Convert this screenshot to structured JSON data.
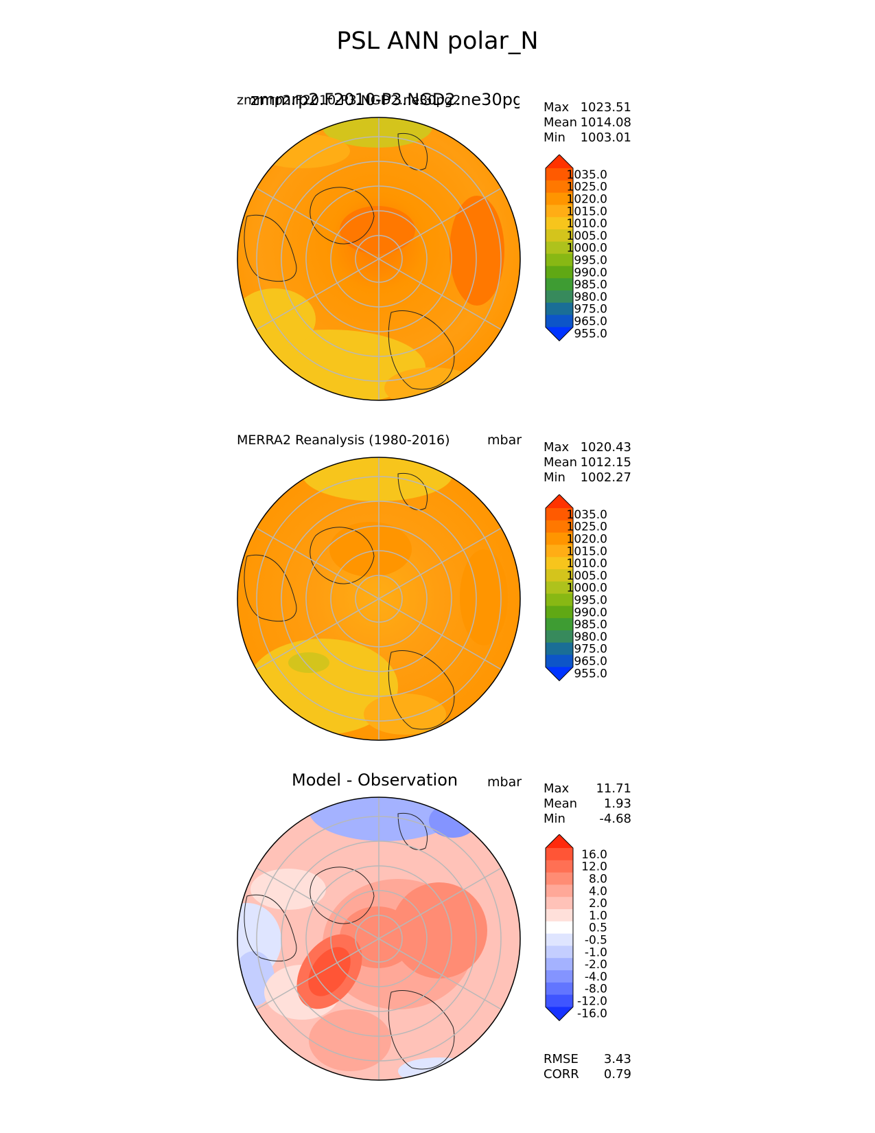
{
  "title": "PSL ANN polar_N",
  "panels": [
    {
      "left_title": "zmmrp2.F2010-P3.NGD2.ne30pg2",
      "left_title_overlap": "zmmrp2.F2010-P3.NGD2.ne30pg2",
      "units": "mbar",
      "stats": [
        {
          "label": "Max",
          "value": "1023.51"
        },
        {
          "label": "Mean",
          "value": "1014.08"
        },
        {
          "label": "Min",
          "value": "1003.01"
        }
      ],
      "colorbar": {
        "labels": [
          "1035.0",
          "1025.0",
          "1020.0",
          "1015.0",
          "1010.0",
          "1005.0",
          "1000.0",
          "995.0",
          "990.0",
          "985.0",
          "980.0",
          "975.0",
          "965.0",
          "955.0"
        ],
        "colors": [
          "#ff3300",
          "#ff5a00",
          "#ff7800",
          "#ff9500",
          "#ffad15",
          "#f7c51c",
          "#d4c41c",
          "#aec21c",
          "#88b814",
          "#60a814",
          "#3e9c33",
          "#378a5c",
          "#1a6e96",
          "#0d55c8",
          "#0034ff"
        ]
      }
    },
    {
      "left_title": "MERRA2 Reanalysis (1980-2016)",
      "units": "mbar",
      "stats": [
        {
          "label": "Max",
          "value": "1020.43"
        },
        {
          "label": "Mean",
          "value": "1012.15"
        },
        {
          "label": "Min",
          "value": "1002.27"
        }
      ],
      "colorbar": {
        "labels": [
          "1035.0",
          "1025.0",
          "1020.0",
          "1015.0",
          "1010.0",
          "1005.0",
          "1000.0",
          "995.0",
          "990.0",
          "985.0",
          "980.0",
          "975.0",
          "965.0",
          "955.0"
        ],
        "colors": [
          "#ff3300",
          "#ff5a00",
          "#ff7800",
          "#ff9500",
          "#ffad15",
          "#f7c51c",
          "#d4c41c",
          "#aec21c",
          "#88b814",
          "#60a814",
          "#3e9c33",
          "#378a5c",
          "#1a6e96",
          "#0d55c8",
          "#0034ff"
        ]
      }
    },
    {
      "center_title": "Model - Observation",
      "units": "mbar",
      "stats": [
        {
          "label": "Max",
          "value": "11.71"
        },
        {
          "label": "Mean",
          "value": "1.93"
        },
        {
          "label": "Min",
          "value": "-4.68"
        }
      ],
      "colorbar": {
        "labels": [
          "16.0",
          "12.0",
          "8.0",
          "4.0",
          "2.0",
          "1.0",
          "0.5",
          "-0.5",
          "-1.0",
          "-2.0",
          "-4.0",
          "-8.0",
          "-12.0",
          "-16.0"
        ],
        "colors": [
          "#ff2a0d",
          "#ff5536",
          "#ff7054",
          "#ff8c74",
          "#ffa898",
          "#ffc2b8",
          "#ffe0da",
          "#ffffff",
          "#dfe5ff",
          "#c4ceff",
          "#a4b2ff",
          "#8494ff",
          "#6275ff",
          "#3f55ff",
          "#1833ff"
        ]
      },
      "metrics": [
        {
          "label": "RMSE",
          "value": "3.43"
        },
        {
          "label": "CORR",
          "value": "0.79"
        }
      ]
    }
  ],
  "chart_data": [
    {
      "type": "heatmap",
      "projection": "north-polar-stereographic",
      "title": "zmmrp2.F2010-P3.NGD2.ne30pg2",
      "units": "mbar",
      "levels": [
        955,
        965,
        975,
        980,
        985,
        990,
        995,
        1000,
        1005,
        1010,
        1015,
        1020,
        1025,
        1035
      ],
      "max": 1023.51,
      "mean": 1014.08,
      "min": 1003.01
    },
    {
      "type": "heatmap",
      "projection": "north-polar-stereographic",
      "title": "MERRA2 Reanalysis (1980-2016)",
      "units": "mbar",
      "levels": [
        955,
        965,
        975,
        980,
        985,
        990,
        995,
        1000,
        1005,
        1010,
        1015,
        1020,
        1025,
        1035
      ],
      "max": 1020.43,
      "mean": 1012.15,
      "min": 1002.27
    },
    {
      "type": "heatmap",
      "projection": "north-polar-stereographic",
      "title": "Model - Observation",
      "units": "mbar",
      "levels": [
        -16,
        -12,
        -8,
        -4,
        -2,
        -1,
        -0.5,
        0.5,
        1,
        2,
        4,
        8,
        12,
        16
      ],
      "max": 11.71,
      "mean": 1.93,
      "min": -4.68,
      "rmse": 3.43,
      "corr": 0.79
    }
  ]
}
